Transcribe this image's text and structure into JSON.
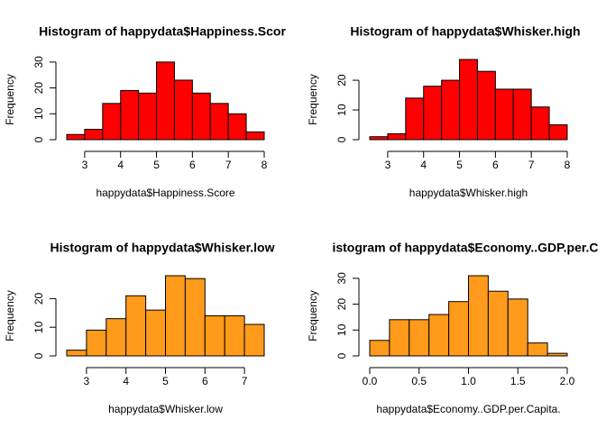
{
  "chart_data": [
    {
      "type": "histogram",
      "title": "Histogram of happydata$Happiness.Scor",
      "xlabel": "happydata$Happiness.Score",
      "ylabel": "Frequency",
      "color": "#ff0000",
      "bins": [
        2.5,
        3,
        3.5,
        4,
        4.5,
        5,
        5.5,
        6,
        6.5,
        7,
        7.5,
        8
      ],
      "values": [
        2,
        4,
        14,
        19,
        18,
        30,
        23,
        18,
        14,
        10,
        3
      ],
      "xlim": [
        2.5,
        8
      ],
      "ylim": [
        0,
        31
      ],
      "xticks": [
        3,
        4,
        5,
        6,
        7,
        8
      ],
      "yticks": [
        0,
        10,
        20,
        30
      ]
    },
    {
      "type": "histogram",
      "title": "Histogram of happydata$Whisker.high",
      "xlabel": "happydata$Whisker.high",
      "ylabel": "Frequency",
      "color": "#ff0000",
      "bins": [
        2.5,
        3,
        3.5,
        4,
        4.5,
        5,
        5.5,
        6,
        6.5,
        7,
        7.5,
        8
      ],
      "values": [
        1,
        2,
        14,
        18,
        20,
        27,
        23,
        17,
        17,
        11,
        5
      ],
      "xlim": [
        2.5,
        8
      ],
      "ylim": [
        0,
        27
      ],
      "xticks": [
        3,
        4,
        5,
        6,
        7,
        8
      ],
      "yticks": [
        0,
        10,
        20
      ]
    },
    {
      "type": "histogram",
      "title": "Histogram of happydata$Whisker.low",
      "xlabel": "happydata$Whisker.low",
      "ylabel": "Frequency",
      "color": "#ff9a1a",
      "bins": [
        2.5,
        3,
        3.5,
        4,
        4.5,
        5,
        5.5,
        6,
        6.5,
        7,
        7.5
      ],
      "values": [
        2,
        9,
        13,
        21,
        16,
        28,
        27,
        14,
        14,
        11
      ],
      "xlim": [
        2.5,
        7.5
      ],
      "ylim": [
        0,
        28
      ],
      "xticks": [
        3,
        4,
        5,
        6,
        7
      ],
      "yticks": [
        0,
        10,
        20
      ]
    },
    {
      "type": "histogram",
      "title": "istogram of happydata$Economy..GDP.per.C",
      "xlabel": "happydata$Economy..GDP.per.Capita.",
      "ylabel": "Frequency",
      "color": "#ff9a1a",
      "bins": [
        0,
        0.2,
        0.4,
        0.6,
        0.8,
        1,
        1.2,
        1.4,
        1.6,
        1.8,
        2
      ],
      "values": [
        6,
        14,
        14,
        16,
        21,
        31,
        25,
        22,
        5,
        1
      ],
      "xlim": [
        0,
        2
      ],
      "ylim": [
        0,
        31
      ],
      "xticks": [
        {
          "value": 0,
          "label": "0.0"
        },
        0.5,
        {
          "value": 1,
          "label": "1.0"
        },
        1.5,
        {
          "value": 2,
          "label": "2.0"
        }
      ],
      "yticks": [
        0,
        10,
        20,
        30
      ]
    }
  ]
}
